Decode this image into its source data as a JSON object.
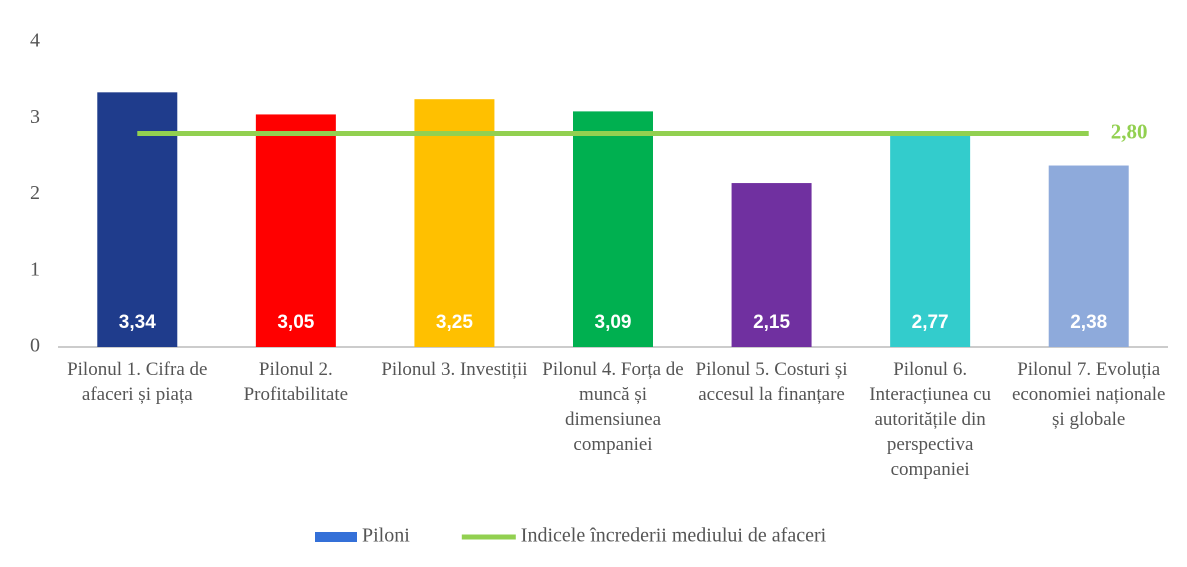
{
  "chart_data": {
    "type": "bar",
    "categories": [
      "Pilonul 1. Cifra de afaceri și piața",
      "Pilonul 2. Profitabilitate",
      "Pilonul 3. Investiții",
      "Pilonul 4. Forța de muncă și dimensiunea companiei",
      "Pilonul 5. Costuri și accesul la finanțare",
      "Pilonul 6. Interacțiunea cu autoritățile din perspectiva companiei",
      "Pilonul 7. Evoluția economiei naționale și globale"
    ],
    "series": [
      {
        "name": "Piloni",
        "type": "bar",
        "color": "#3470d8",
        "colors": [
          "#1f3c8c",
          "#ff0000",
          "#ffc000",
          "#00b050",
          "#7030a0",
          "#33cccc",
          "#8eaadb"
        ],
        "values": [
          3.34,
          3.05,
          3.25,
          3.09,
          2.15,
          2.77,
          2.38
        ],
        "value_labels": [
          "3,34",
          "3,05",
          "3,25",
          "3,09",
          "2,15",
          "2,77",
          "2,38"
        ]
      },
      {
        "name": "Indicele încrederii mediului de afaceri",
        "type": "line",
        "color": "#92d050",
        "values": [
          2.8,
          2.8,
          2.8,
          2.8,
          2.8,
          2.8,
          2.8
        ],
        "label": "2,80"
      }
    ],
    "ylim": [
      0,
      4
    ],
    "yticks": [
      0,
      1,
      2,
      3,
      4
    ],
    "grid": false,
    "legend": "bottom"
  }
}
